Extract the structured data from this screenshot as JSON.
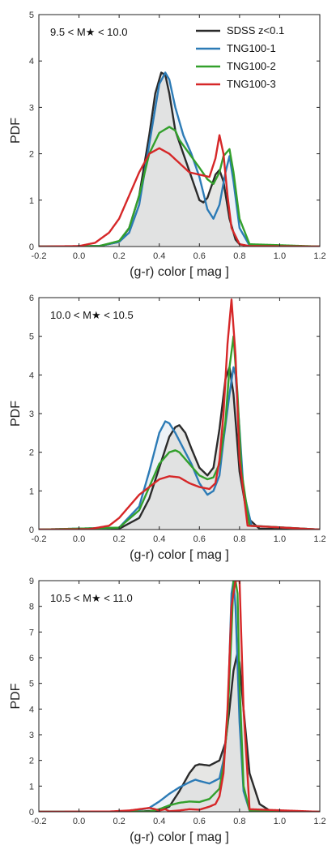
{
  "chart_data": [
    {
      "type": "line",
      "annotation": "9.5 < M★ < 10.0",
      "xlabel": "(g-r) color [ mag ]",
      "ylabel": "PDF",
      "xlim": [
        -0.2,
        1.2
      ],
      "ylim": [
        0,
        5
      ],
      "xticks": [
        "-0.2",
        "0.0",
        "0.2",
        "0.4",
        "0.6",
        "0.8",
        "1.0",
        "1.2"
      ],
      "yticks": [
        "0",
        "1",
        "2",
        "3",
        "4",
        "5"
      ],
      "legend": "top-right",
      "series": [
        {
          "name": "SDSS z<0.1",
          "color": "#2b2b2b",
          "x": [
            -0.2,
            0.1,
            0.2,
            0.25,
            0.3,
            0.35,
            0.38,
            0.41,
            0.43,
            0.45,
            0.48,
            0.52,
            0.56,
            0.6,
            0.62,
            0.64,
            0.66,
            0.68,
            0.7,
            0.72,
            0.75,
            0.78,
            0.8,
            0.85,
            1.2
          ],
          "y": [
            0,
            0.01,
            0.1,
            0.4,
            1.1,
            2.4,
            3.3,
            3.75,
            3.7,
            3.3,
            2.5,
            2.0,
            1.5,
            1.0,
            0.95,
            1.05,
            1.3,
            1.55,
            1.65,
            1.4,
            0.6,
            0.15,
            0.05,
            0,
            0
          ]
        },
        {
          "name": "TNG100-1",
          "color": "#2c7bb6",
          "x": [
            -0.2,
            0.1,
            0.2,
            0.25,
            0.3,
            0.35,
            0.4,
            0.43,
            0.45,
            0.48,
            0.52,
            0.56,
            0.6,
            0.64,
            0.67,
            0.7,
            0.73,
            0.75,
            0.77,
            0.8,
            0.85,
            1.2
          ],
          "y": [
            0,
            0.01,
            0.1,
            0.3,
            0.9,
            2.2,
            3.5,
            3.75,
            3.6,
            3.0,
            2.4,
            2.0,
            1.5,
            0.8,
            0.6,
            0.9,
            1.6,
            1.95,
            1.4,
            0.4,
            0.02,
            0
          ]
        },
        {
          "name": "TNG100-2",
          "color": "#33a02c",
          "x": [
            -0.2,
            0.1,
            0.2,
            0.25,
            0.3,
            0.35,
            0.4,
            0.45,
            0.48,
            0.5,
            0.55,
            0.6,
            0.64,
            0.67,
            0.7,
            0.72,
            0.75,
            0.77,
            0.8,
            0.85,
            1.2
          ],
          "y": [
            0,
            0.01,
            0.12,
            0.4,
            1.1,
            2.0,
            2.45,
            2.58,
            2.5,
            2.3,
            2.0,
            1.7,
            1.45,
            1.35,
            1.6,
            1.95,
            2.1,
            1.6,
            0.6,
            0.05,
            0
          ]
        },
        {
          "name": "TNG100-3",
          "color": "#d62728",
          "x": [
            -0.2,
            0.0,
            0.08,
            0.15,
            0.2,
            0.25,
            0.3,
            0.35,
            0.4,
            0.45,
            0.5,
            0.55,
            0.6,
            0.65,
            0.68,
            0.7,
            0.72,
            0.74,
            0.76,
            0.8,
            0.85,
            1.2
          ],
          "y": [
            0,
            0.01,
            0.08,
            0.3,
            0.6,
            1.1,
            1.6,
            2.0,
            2.12,
            2.0,
            1.8,
            1.6,
            1.55,
            1.5,
            1.9,
            2.4,
            2.0,
            1.1,
            0.4,
            0.05,
            0.01,
            0
          ]
        }
      ]
    },
    {
      "type": "line",
      "annotation": "10.0 < M★ < 10.5",
      "xlabel": "(g-r) color [ mag ]",
      "ylabel": "PDF",
      "xlim": [
        -0.2,
        1.2
      ],
      "ylim": [
        0,
        6
      ],
      "xticks": [
        "-0.2",
        "0.0",
        "0.2",
        "0.4",
        "0.6",
        "0.8",
        "1.0",
        "1.2"
      ],
      "yticks": [
        "0",
        "1",
        "2",
        "3",
        "4",
        "5",
        "6"
      ],
      "series": [
        {
          "name": "SDSS z<0.1",
          "color": "#2b2b2b",
          "x": [
            -0.2,
            0.2,
            0.3,
            0.35,
            0.4,
            0.45,
            0.48,
            0.5,
            0.53,
            0.56,
            0.6,
            0.64,
            0.67,
            0.7,
            0.73,
            0.75,
            0.77,
            0.8,
            0.84,
            0.9,
            1.2
          ],
          "y": [
            0,
            0.02,
            0.3,
            0.8,
            1.6,
            2.4,
            2.65,
            2.7,
            2.5,
            2.1,
            1.6,
            1.4,
            1.6,
            2.6,
            3.9,
            4.2,
            3.5,
            1.5,
            0.3,
            0.02,
            0
          ]
        },
        {
          "name": "TNG100-1",
          "color": "#2c7bb6",
          "x": [
            -0.2,
            0.2,
            0.3,
            0.35,
            0.4,
            0.43,
            0.45,
            0.48,
            0.52,
            0.56,
            0.6,
            0.64,
            0.67,
            0.7,
            0.72,
            0.75,
            0.77,
            0.78,
            0.8,
            0.82,
            0.86,
            1.2
          ],
          "y": [
            0,
            0.05,
            0.6,
            1.5,
            2.5,
            2.8,
            2.75,
            2.5,
            2.1,
            1.7,
            1.2,
            0.9,
            1.0,
            1.4,
            2.3,
            3.5,
            4.2,
            4.0,
            2.6,
            1.0,
            0.1,
            0
          ]
        },
        {
          "name": "TNG100-2",
          "color": "#33a02c",
          "x": [
            -0.2,
            0.2,
            0.3,
            0.35,
            0.4,
            0.45,
            0.48,
            0.5,
            0.55,
            0.6,
            0.64,
            0.67,
            0.7,
            0.73,
            0.75,
            0.77,
            0.79,
            0.81,
            0.85,
            1.2
          ],
          "y": [
            0,
            0.05,
            0.5,
            1.1,
            1.7,
            2.0,
            2.05,
            2.0,
            1.7,
            1.4,
            1.3,
            1.35,
            1.7,
            2.8,
            4.2,
            5.0,
            3.5,
            1.5,
            0.1,
            0
          ]
        },
        {
          "name": "TNG100-3",
          "color": "#d62728",
          "x": [
            -0.2,
            0.05,
            0.15,
            0.2,
            0.25,
            0.3,
            0.35,
            0.4,
            0.45,
            0.5,
            0.55,
            0.6,
            0.65,
            0.68,
            0.7,
            0.72,
            0.74,
            0.76,
            0.78,
            0.8,
            0.84,
            1.2
          ],
          "y": [
            0,
            0.01,
            0.1,
            0.3,
            0.6,
            0.9,
            1.1,
            1.3,
            1.38,
            1.35,
            1.2,
            1.1,
            1.05,
            1.2,
            1.8,
            3.0,
            4.8,
            5.95,
            4.5,
            1.8,
            0.1,
            0
          ]
        }
      ]
    },
    {
      "type": "line",
      "annotation": "10.5 < M★ < 11.0",
      "xlabel": "(g-r) color [ mag ]",
      "ylabel": "PDF",
      "xlim": [
        -0.2,
        1.2
      ],
      "ylim": [
        0,
        9
      ],
      "xticks": [
        "-0.2",
        "0.0",
        "0.2",
        "0.4",
        "0.6",
        "0.8",
        "1.0",
        "1.2"
      ],
      "yticks": [
        "0",
        "1",
        "2",
        "3",
        "4",
        "5",
        "6",
        "7",
        "8",
        "9"
      ],
      "series": [
        {
          "name": "SDSS z<0.1",
          "color": "#2b2b2b",
          "x": [
            -0.2,
            0.3,
            0.4,
            0.45,
            0.5,
            0.55,
            0.58,
            0.6,
            0.65,
            0.7,
            0.73,
            0.75,
            0.77,
            0.79,
            0.8,
            0.82,
            0.85,
            0.9,
            0.95,
            1.0,
            1.2
          ],
          "y": [
            0,
            0.01,
            0.05,
            0.2,
            0.8,
            1.5,
            1.8,
            1.85,
            1.8,
            2.0,
            2.7,
            4.0,
            5.5,
            6.2,
            5.8,
            4.0,
            1.5,
            0.3,
            0.05,
            0.01,
            0
          ]
        },
        {
          "name": "TNG100-1",
          "color": "#2c7bb6",
          "x": [
            -0.2,
            0.25,
            0.35,
            0.4,
            0.45,
            0.5,
            0.55,
            0.58,
            0.6,
            0.65,
            0.7,
            0.72,
            0.74,
            0.75,
            0.76,
            0.77,
            0.78,
            0.8,
            0.82,
            0.85,
            1.2
          ],
          "y": [
            0,
            0.01,
            0.15,
            0.4,
            0.7,
            0.95,
            1.15,
            1.25,
            1.2,
            1.1,
            1.3,
            2.0,
            3.5,
            6.0,
            8.5,
            9.0,
            8.0,
            3.5,
            0.8,
            0.05,
            0
          ]
        },
        {
          "name": "TNG100-2",
          "color": "#33a02c",
          "x": [
            -0.2,
            0.35,
            0.4,
            0.45,
            0.5,
            0.55,
            0.6,
            0.65,
            0.7,
            0.72,
            0.74,
            0.76,
            0.77,
            0.78,
            0.79,
            0.8,
            0.82,
            0.85,
            1.2
          ],
          "y": [
            0,
            0.01,
            0.1,
            0.25,
            0.35,
            0.4,
            0.38,
            0.5,
            0.9,
            1.8,
            3.5,
            7.0,
            9.0,
            9.0,
            8.5,
            5.0,
            1.0,
            0.05,
            0
          ]
        },
        {
          "name": "TNG100-3",
          "color": "#d62728",
          "x": [
            -0.2,
            0.15,
            0.25,
            0.3,
            0.35,
            0.38,
            0.4,
            0.43,
            0.45,
            0.5,
            0.55,
            0.6,
            0.65,
            0.68,
            0.7,
            0.72,
            0.74,
            0.76,
            0.78,
            0.8,
            0.82,
            0.85,
            1.2
          ],
          "y": [
            0,
            0.01,
            0.05,
            0.1,
            0.15,
            0.1,
            0.05,
            0.1,
            0.02,
            0.05,
            0.1,
            0.08,
            0.2,
            0.3,
            0.6,
            1.5,
            4.0,
            8.0,
            9.0,
            9.0,
            4.0,
            0.1,
            0
          ]
        }
      ]
    }
  ]
}
